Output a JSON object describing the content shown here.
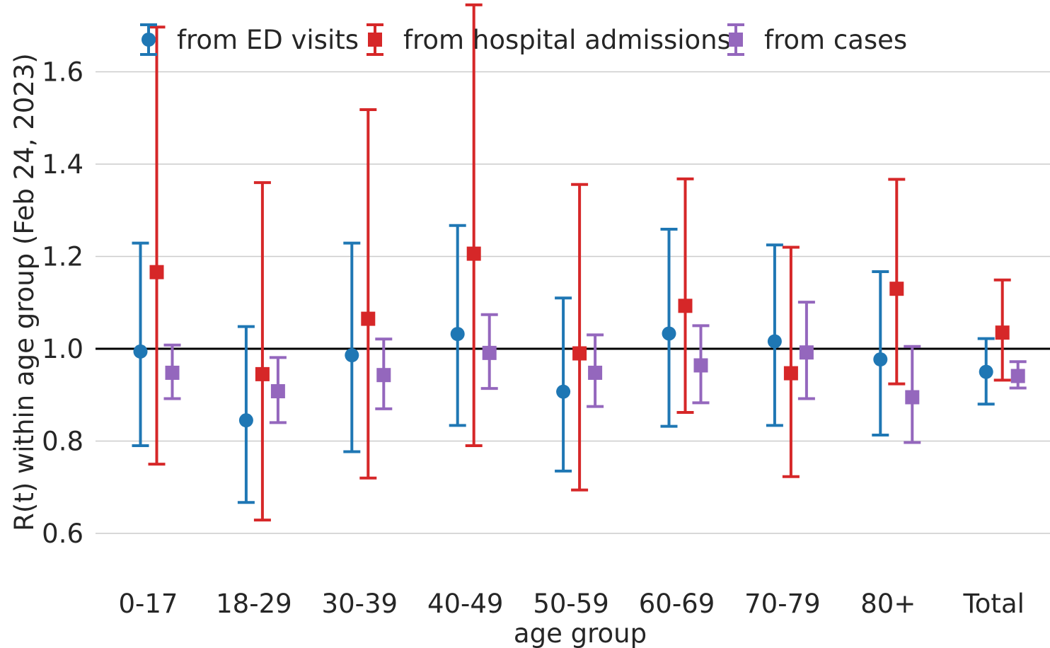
{
  "chart_data": {
    "type": "scatter",
    "title": "",
    "xlabel": "age group",
    "ylabel": "R(t) within age group (Feb 24, 2023)",
    "categories": [
      "0-17",
      "18-29",
      "30-39",
      "40-49",
      "50-59",
      "60-69",
      "70-79",
      "80+",
      "Total"
    ],
    "ylim": [
      0.5,
      1.72
    ],
    "yticks": [
      "0.6",
      "0.8",
      "1.0",
      "1.2",
      "1.4",
      "1.6"
    ],
    "reference_line": 1.0,
    "grid": "horizontal",
    "legend_position": "top",
    "series": [
      {
        "name": "from ED visits",
        "color": "#1f77b4",
        "marker": "circle",
        "values": [
          0.994,
          0.845,
          0.986,
          1.032,
          0.907,
          1.033,
          1.016,
          0.977,
          0.95
        ],
        "lower": [
          0.79,
          0.667,
          0.777,
          0.834,
          0.735,
          0.832,
          0.834,
          0.813,
          0.88
        ],
        "upper": [
          1.229,
          1.048,
          1.229,
          1.267,
          1.11,
          1.259,
          1.225,
          1.167,
          1.022
        ]
      },
      {
        "name": "from hospital admissions",
        "color": "#d62728",
        "marker": "square",
        "values": [
          1.166,
          0.945,
          1.065,
          1.206,
          0.99,
          1.093,
          0.947,
          1.13,
          1.035
        ],
        "lower": [
          0.75,
          0.629,
          0.72,
          0.79,
          0.694,
          0.862,
          0.723,
          0.924,
          0.932
        ],
        "upper": [
          1.697,
          1.36,
          1.518,
          1.745,
          1.356,
          1.368,
          1.22,
          1.367,
          1.149
        ]
      },
      {
        "name": "from cases",
        "color": "#9467bd",
        "marker": "square",
        "values": [
          0.948,
          0.908,
          0.943,
          0.991,
          0.948,
          0.964,
          0.992,
          0.895,
          0.941
        ],
        "lower": [
          0.892,
          0.84,
          0.87,
          0.914,
          0.875,
          0.883,
          0.892,
          0.797,
          0.915
        ],
        "upper": [
          1.008,
          0.981,
          1.021,
          1.074,
          1.03,
          1.05,
          1.101,
          1.005,
          0.972
        ]
      }
    ]
  }
}
